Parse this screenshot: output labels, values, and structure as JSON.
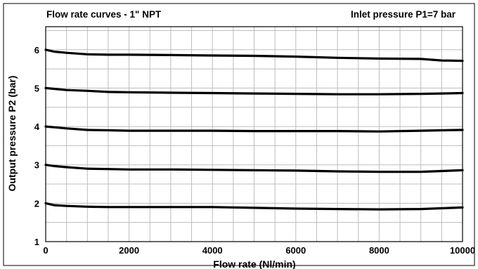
{
  "chart_data": {
    "type": "line",
    "title": "Flow rate curves - 1\" NPT",
    "subtitle": "Inlet pressure P1=7 bar",
    "xlabel": "Flow rate (Nl/min)",
    "ylabel": "Output pressure P2 (bar)",
    "xlim": [
      0,
      10000
    ],
    "ylim": [
      1,
      6.6
    ],
    "xticks": [
      0,
      2000,
      4000,
      6000,
      8000,
      10000
    ],
    "yticks": [
      1,
      2,
      3,
      4,
      5,
      6
    ],
    "grid": true,
    "legend": "none",
    "line_color": "#000000",
    "series": [
      {
        "x": [
          0,
          200,
          500,
          1000,
          1500,
          2000,
          3000,
          4000,
          5000,
          6000,
          7000,
          8000,
          9000,
          9500,
          10000
        ],
        "values": [
          6.0,
          5.95,
          5.92,
          5.88,
          5.87,
          5.87,
          5.86,
          5.85,
          5.84,
          5.82,
          5.79,
          5.77,
          5.76,
          5.72,
          5.71
        ]
      },
      {
        "x": [
          0,
          200,
          500,
          1000,
          1500,
          2000,
          3000,
          4000,
          5000,
          6000,
          7000,
          8000,
          9000,
          9500,
          10000
        ],
        "values": [
          5.0,
          4.98,
          4.95,
          4.93,
          4.9,
          4.89,
          4.88,
          4.87,
          4.86,
          4.85,
          4.84,
          4.84,
          4.85,
          4.86,
          4.87
        ]
      },
      {
        "x": [
          0,
          200,
          500,
          1000,
          1500,
          2000,
          3000,
          4000,
          5000,
          6000,
          7000,
          8000,
          9000,
          9500,
          10000
        ],
        "values": [
          4.0,
          3.98,
          3.95,
          3.91,
          3.9,
          3.89,
          3.89,
          3.89,
          3.88,
          3.88,
          3.88,
          3.87,
          3.89,
          3.9,
          3.91
        ]
      },
      {
        "x": [
          0,
          200,
          500,
          1000,
          1500,
          2000,
          3000,
          4000,
          5000,
          6000,
          7000,
          8000,
          9000,
          9500,
          10000
        ],
        "values": [
          3.0,
          2.97,
          2.94,
          2.9,
          2.89,
          2.88,
          2.88,
          2.87,
          2.86,
          2.85,
          2.83,
          2.82,
          2.82,
          2.84,
          2.86
        ]
      },
      {
        "x": [
          0,
          200,
          500,
          1000,
          1500,
          2000,
          3000,
          4000,
          5000,
          6000,
          7000,
          8000,
          9000,
          9500,
          10000
        ],
        "values": [
          2.0,
          1.95,
          1.93,
          1.91,
          1.9,
          1.9,
          1.9,
          1.9,
          1.88,
          1.86,
          1.85,
          1.84,
          1.85,
          1.87,
          1.89
        ]
      }
    ]
  }
}
